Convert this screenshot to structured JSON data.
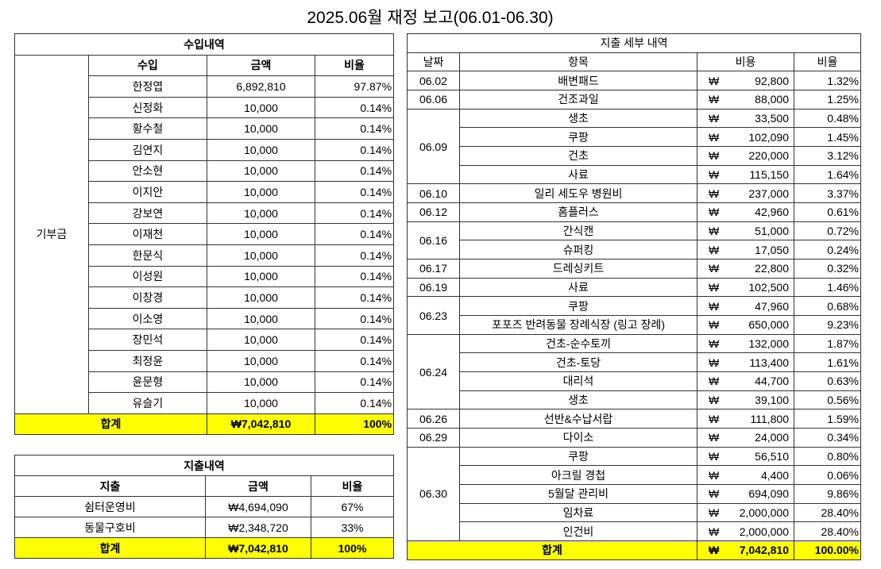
{
  "title": "2025.06월 재정 보고(06.01-06.30)",
  "income": {
    "title": "수입내역",
    "category": "기부금",
    "headers": [
      "수입",
      "금액",
      "비율"
    ],
    "rows": [
      {
        "name": "한정엽",
        "amount": "6,892,810",
        "ratio": "97.87%"
      },
      {
        "name": "신정화",
        "amount": "10,000",
        "ratio": "0.14%"
      },
      {
        "name": "황수철",
        "amount": "10,000",
        "ratio": "0.14%"
      },
      {
        "name": "김연지",
        "amount": "10,000",
        "ratio": "0.14%"
      },
      {
        "name": "안소현",
        "amount": "10,000",
        "ratio": "0.14%"
      },
      {
        "name": "이지안",
        "amount": "10,000",
        "ratio": "0.14%"
      },
      {
        "name": "강보연",
        "amount": "10,000",
        "ratio": "0.14%"
      },
      {
        "name": "이재천",
        "amount": "10,000",
        "ratio": "0.14%"
      },
      {
        "name": "한문식",
        "amount": "10,000",
        "ratio": "0.14%"
      },
      {
        "name": "이성원",
        "amount": "10,000",
        "ratio": "0.14%"
      },
      {
        "name": "이창경",
        "amount": "10,000",
        "ratio": "0.14%"
      },
      {
        "name": "이소영",
        "amount": "10,000",
        "ratio": "0.14%"
      },
      {
        "name": "장민석",
        "amount": "10,000",
        "ratio": "0.14%"
      },
      {
        "name": "최정윤",
        "amount": "10,000",
        "ratio": "0.14%"
      },
      {
        "name": "윤문형",
        "amount": "10,000",
        "ratio": "0.14%"
      },
      {
        "name": "유슬기",
        "amount": "10,000",
        "ratio": "0.14%"
      }
    ],
    "total": {
      "label": "합계",
      "amount": "₩7,042,810",
      "ratio": "100%"
    }
  },
  "expense": {
    "title": "지출내역",
    "headers": [
      "지출",
      "금액",
      "비율"
    ],
    "rows": [
      {
        "name": "쉼터운영비",
        "amount": "₩4,694,090",
        "ratio": "67%"
      },
      {
        "name": "동물구호비",
        "amount": "₩2,348,720",
        "ratio": "33%"
      }
    ],
    "total": {
      "label": "합계",
      "amount": "₩7,042,810",
      "ratio": "100%"
    }
  },
  "detail": {
    "title": "지출 세부 내역",
    "headers": [
      "날짜",
      "항목",
      "비용",
      "비율"
    ],
    "currency": "₩",
    "groups": [
      {
        "date": "06.02",
        "items": [
          {
            "item": "배변패드",
            "cost": "92,800",
            "ratio": "1.32%"
          }
        ]
      },
      {
        "date": "06.06",
        "items": [
          {
            "item": "건조과일",
            "cost": "88,000",
            "ratio": "1.25%"
          }
        ]
      },
      {
        "date": "06.09",
        "items": [
          {
            "item": "생초",
            "cost": "33,500",
            "ratio": "0.48%"
          },
          {
            "item": "쿠팡",
            "cost": "102,090",
            "ratio": "1.45%"
          },
          {
            "item": "건초",
            "cost": "220,000",
            "ratio": "3.12%"
          },
          {
            "item": "사료",
            "cost": "115,150",
            "ratio": "1.64%"
          }
        ]
      },
      {
        "date": "06.10",
        "items": [
          {
            "item": "일리 세도우 병원비",
            "cost": "237,000",
            "ratio": "3.37%"
          }
        ]
      },
      {
        "date": "06.12",
        "items": [
          {
            "item": "홈플러스",
            "cost": "42,960",
            "ratio": "0.61%"
          }
        ]
      },
      {
        "date": "06.16",
        "items": [
          {
            "item": "간식캔",
            "cost": "51,000",
            "ratio": "0.72%"
          },
          {
            "item": "슈퍼킹",
            "cost": "17,050",
            "ratio": "0.24%"
          }
        ]
      },
      {
        "date": "06.17",
        "items": [
          {
            "item": "드레싱키트",
            "cost": "22,800",
            "ratio": "0.32%"
          }
        ]
      },
      {
        "date": "06.19",
        "items": [
          {
            "item": "사료",
            "cost": "102,500",
            "ratio": "1.46%"
          }
        ]
      },
      {
        "date": "06.23",
        "items": [
          {
            "item": "쿠팡",
            "cost": "47,960",
            "ratio": "0.68%"
          },
          {
            "item": "포포즈 반려동물 장례식장 (링고 장례)",
            "cost": "650,000",
            "ratio": "9.23%"
          }
        ]
      },
      {
        "date": "06.24",
        "items": [
          {
            "item": "건초-순수토끼",
            "cost": "132,000",
            "ratio": "1.87%"
          },
          {
            "item": "건초-토당",
            "cost": "113,400",
            "ratio": "1.61%"
          },
          {
            "item": "대리석",
            "cost": "44,700",
            "ratio": "0.63%"
          },
          {
            "item": "생초",
            "cost": "39,100",
            "ratio": "0.56%"
          }
        ]
      },
      {
        "date": "06.26",
        "items": [
          {
            "item": "선반&수납서랍",
            "cost": "111,800",
            "ratio": "1.59%"
          }
        ]
      },
      {
        "date": "06.29",
        "items": [
          {
            "item": "다이소",
            "cost": "24,000",
            "ratio": "0.34%"
          }
        ]
      },
      {
        "date": "06.30",
        "items": [
          {
            "item": "쿠팡",
            "cost": "56,510",
            "ratio": "0.80%"
          },
          {
            "item": "아크릴 경첩",
            "cost": "4,400",
            "ratio": "0.06%"
          },
          {
            "item": "5월달 관리비",
            "cost": "694,090",
            "ratio": "9.86%"
          },
          {
            "item": "임차료",
            "cost": "2,000,000",
            "ratio": "28.40%"
          },
          {
            "item": "인건비",
            "cost": "2,000,000",
            "ratio": "28.40%"
          }
        ]
      }
    ],
    "total": {
      "label": "합계",
      "cost": "7,042,810",
      "ratio": "100.00%"
    }
  },
  "colors": {
    "total_highlight": "#ffff00",
    "border": "#333333"
  }
}
